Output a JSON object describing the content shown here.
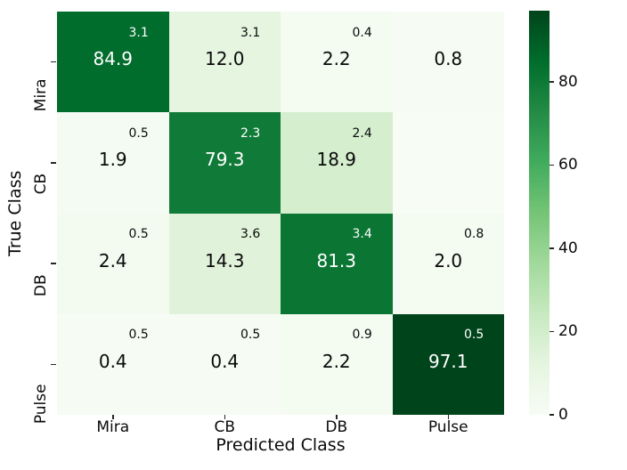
{
  "axes": {
    "xlabel": "Predicted Class",
    "ylabel": "True Class",
    "x_ticks": [
      "Mira",
      "CB",
      "DB",
      "Pulse"
    ],
    "y_ticks": [
      "Mira",
      "CB",
      "DB",
      "Pulse"
    ]
  },
  "chart_data": {
    "type": "heatmap",
    "title": "",
    "xlabel": "Predicted Class",
    "ylabel": "True Class",
    "x_categories": [
      "Mira",
      "CB",
      "DB",
      "Pulse"
    ],
    "y_categories": [
      "Mira",
      "CB",
      "DB",
      "Pulse"
    ],
    "values": [
      [
        84.9,
        12.0,
        2.2,
        0.8
      ],
      [
        1.9,
        79.3,
        18.9,
        null
      ],
      [
        2.4,
        14.3,
        81.3,
        2.0
      ],
      [
        0.4,
        0.4,
        2.2,
        97.1
      ]
    ],
    "std": [
      [
        3.1,
        3.1,
        0.4,
        null
      ],
      [
        0.5,
        2.3,
        2.4,
        null
      ],
      [
        0.5,
        3.6,
        3.4,
        0.8
      ],
      [
        0.5,
        0.5,
        0.9,
        0.5
      ]
    ],
    "colormap": "Greens",
    "vmin": 0,
    "vmax": 97.1,
    "colorbar_ticks": [
      0,
      20,
      40,
      60,
      80
    ],
    "legend": "none",
    "grid": false
  },
  "cells": [
    {
      "row": "Mira",
      "col": "Mira",
      "value": "84.9",
      "std": "3.1",
      "bg": "#016d2c",
      "fg": "#ffffff"
    },
    {
      "row": "Mira",
      "col": "CB",
      "value": "12.0",
      "std": "3.1",
      "bg": "#e5f5e0",
      "fg": "#0a0a0a"
    },
    {
      "row": "Mira",
      "col": "DB",
      "value": "2.2",
      "std": "0.4",
      "bg": "#f4fbf1",
      "fg": "#0a0a0a"
    },
    {
      "row": "Mira",
      "col": "Pulse",
      "value": "0.8",
      "std": "",
      "bg": "#f6fcf4",
      "fg": "#0a0a0a"
    },
    {
      "row": "CB",
      "col": "Mira",
      "value": "1.9",
      "std": "0.5",
      "bg": "#f4fbf2",
      "fg": "#0a0a0a"
    },
    {
      "row": "CB",
      "col": "CB",
      "value": "79.3",
      "std": "2.3",
      "bg": "#107b38",
      "fg": "#ffffff"
    },
    {
      "row": "CB",
      "col": "DB",
      "value": "18.9",
      "std": "2.4",
      "bg": "#d4eece",
      "fg": "#0a0a0a"
    },
    {
      "row": "CB",
      "col": "Pulse",
      "value": "",
      "std": "",
      "bg": "#f7fcf5",
      "fg": "#0a0a0a"
    },
    {
      "row": "DB",
      "col": "Mira",
      "value": "2.4",
      "std": "0.5",
      "bg": "#f3fbf1",
      "fg": "#0a0a0a"
    },
    {
      "row": "DB",
      "col": "CB",
      "value": "14.3",
      "std": "3.6",
      "bg": "#e0f3da",
      "fg": "#0a0a0a"
    },
    {
      "row": "DB",
      "col": "DB",
      "value": "81.3",
      "std": "3.4",
      "bg": "#0b7634",
      "fg": "#ffffff"
    },
    {
      "row": "DB",
      "col": "Pulse",
      "value": "2.0",
      "std": "0.8",
      "bg": "#f4fbf1",
      "fg": "#0a0a0a"
    },
    {
      "row": "Pulse",
      "col": "Mira",
      "value": "0.4",
      "std": "0.5",
      "bg": "#f6fcf4",
      "fg": "#0a0a0a"
    },
    {
      "row": "Pulse",
      "col": "CB",
      "value": "0.4",
      "std": "0.5",
      "bg": "#f6fcf4",
      "fg": "#0a0a0a"
    },
    {
      "row": "Pulse",
      "col": "DB",
      "value": "2.2",
      "std": "0.9",
      "bg": "#f4fbf1",
      "fg": "#0a0a0a"
    },
    {
      "row": "Pulse",
      "col": "Pulse",
      "value": "97.1",
      "std": "0.5",
      "bg": "#00441b",
      "fg": "#ffffff"
    }
  ],
  "colorbar": {
    "tick_labels": [
      "0",
      "20",
      "40",
      "60",
      "80"
    ],
    "tick_values": [
      0,
      20,
      40,
      60,
      80
    ],
    "vmax": 97.1,
    "gradient": [
      "#f7fcf5",
      "#e5f5e0",
      "#c7e9c0",
      "#a1d99b",
      "#74c476",
      "#41ab5d",
      "#238b45",
      "#006d2c",
      "#00441b"
    ]
  },
  "colors": {
    "tick_color": "#262626",
    "background": "#ffffff"
  }
}
